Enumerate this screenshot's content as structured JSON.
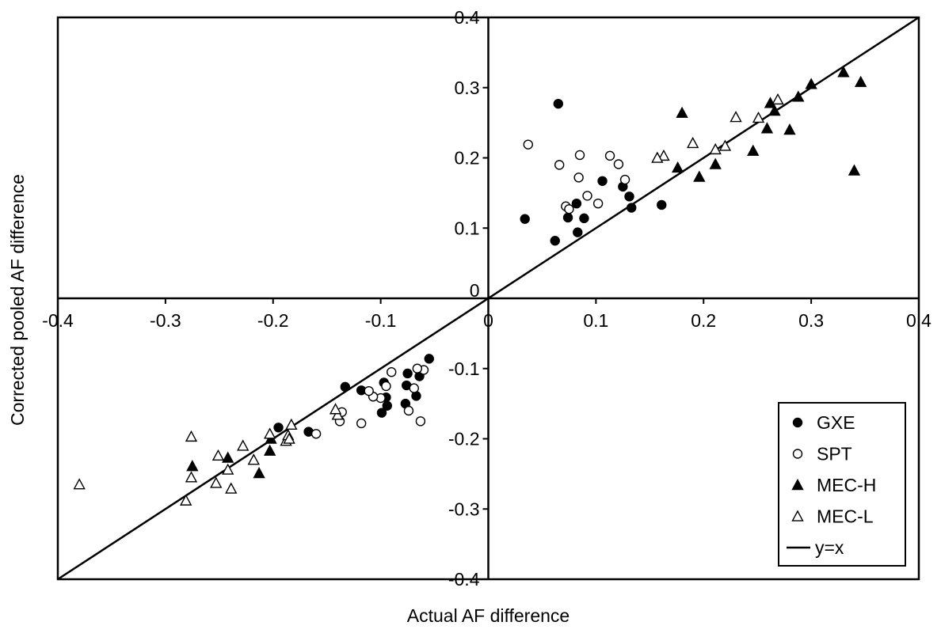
{
  "chart_data": {
    "type": "scatter",
    "title": "",
    "xlabel": "Actual AF difference",
    "ylabel": "Corrected pooled AF difference",
    "xlim": [
      -0.4,
      0.4
    ],
    "ylim": [
      -0.4,
      0.4
    ],
    "x_ticks": [
      -0.4,
      -0.3,
      -0.2,
      -0.1,
      0,
      0.1,
      0.2,
      0.3,
      0.4
    ],
    "y_ticks": [
      -0.4,
      -0.3,
      -0.2,
      -0.1,
      0,
      0.1,
      0.2,
      0.3,
      0.4
    ],
    "x_tick_labels": [
      "-0.4",
      "-0.3",
      "-0.2",
      "-0.1",
      "0",
      "0.1",
      "0.2",
      "0.3",
      "0.4"
    ],
    "y_tick_labels": [
      "-0.4",
      "-0.3",
      "-0.2",
      "-0.1",
      "0",
      "0.1",
      "0.2",
      "0.3",
      "0.4"
    ],
    "grid": false,
    "axes_through_origin": true,
    "legend_position": "bottom-right",
    "reference_line": {
      "name": "y=x",
      "slope": 1,
      "intercept": 0
    },
    "series": [
      {
        "name": "GXE",
        "marker": "circle",
        "filled": true,
        "points": [
          [
            0.065,
            0.277
          ],
          [
            0.034,
            0.113
          ],
          [
            0.074,
            0.115
          ],
          [
            0.062,
            0.082
          ],
          [
            0.082,
            0.135
          ],
          [
            0.083,
            0.094
          ],
          [
            0.089,
            0.114
          ],
          [
            0.106,
            0.167
          ],
          [
            0.125,
            0.159
          ],
          [
            0.131,
            0.145
          ],
          [
            0.133,
            0.129
          ],
          [
            0.161,
            0.133
          ],
          [
            -0.055,
            -0.086
          ],
          [
            -0.064,
            -0.111
          ],
          [
            -0.075,
            -0.107
          ],
          [
            -0.076,
            -0.124
          ],
          [
            -0.067,
            -0.139
          ],
          [
            -0.077,
            -0.15
          ],
          [
            -0.095,
            -0.141
          ],
          [
            -0.094,
            -0.153
          ],
          [
            -0.097,
            -0.12
          ],
          [
            -0.099,
            -0.163
          ],
          [
            -0.118,
            -0.131
          ],
          [
            -0.133,
            -0.126
          ],
          [
            -0.167,
            -0.19
          ],
          [
            -0.195,
            -0.184
          ]
        ]
      },
      {
        "name": "SPT",
        "marker": "circle",
        "filled": false,
        "points": [
          [
            0.037,
            0.219
          ],
          [
            0.066,
            0.19
          ],
          [
            0.072,
            0.131
          ],
          [
            0.075,
            0.127
          ],
          [
            0.084,
            0.172
          ],
          [
            0.085,
            0.204
          ],
          [
            0.092,
            0.146
          ],
          [
            0.102,
            0.135
          ],
          [
            0.113,
            0.203
          ],
          [
            0.121,
            0.191
          ],
          [
            0.127,
            0.169
          ],
          [
            -0.06,
            -0.102
          ],
          [
            -0.066,
            -0.1
          ],
          [
            -0.069,
            -0.128
          ],
          [
            -0.074,
            -0.16
          ],
          [
            -0.063,
            -0.175
          ],
          [
            -0.09,
            -0.105
          ],
          [
            -0.095,
            -0.125
          ],
          [
            -0.1,
            -0.142
          ],
          [
            -0.107,
            -0.14
          ],
          [
            -0.111,
            -0.132
          ],
          [
            -0.118,
            -0.178
          ],
          [
            -0.136,
            -0.162
          ],
          [
            -0.138,
            -0.175
          ],
          [
            -0.16,
            -0.193
          ]
        ]
      },
      {
        "name": "MEC-H",
        "marker": "triangle",
        "filled": true,
        "points": [
          [
            0.33,
            0.322
          ],
          [
            0.346,
            0.308
          ],
          [
            0.3,
            0.305
          ],
          [
            0.288,
            0.287
          ],
          [
            0.262,
            0.278
          ],
          [
            0.266,
            0.267
          ],
          [
            0.259,
            0.242
          ],
          [
            0.28,
            0.24
          ],
          [
            0.246,
            0.21
          ],
          [
            0.211,
            0.191
          ],
          [
            0.18,
            0.264
          ],
          [
            0.176,
            0.186
          ],
          [
            0.196,
            0.173
          ],
          [
            0.34,
            0.182
          ],
          [
            -0.275,
            -0.239
          ],
          [
            -0.242,
            -0.227
          ],
          [
            -0.213,
            -0.249
          ],
          [
            -0.203,
            -0.217
          ],
          [
            -0.202,
            -0.2
          ]
        ]
      },
      {
        "name": "MEC-L",
        "marker": "triangle",
        "filled": false,
        "points": [
          [
            0.269,
            0.283
          ],
          [
            0.23,
            0.258
          ],
          [
            0.251,
            0.257
          ],
          [
            0.19,
            0.221
          ],
          [
            0.22,
            0.217
          ],
          [
            0.211,
            0.212
          ],
          [
            0.163,
            0.203
          ],
          [
            0.157,
            0.2
          ],
          [
            -0.38,
            -0.265
          ],
          [
            -0.276,
            -0.197
          ],
          [
            -0.276,
            -0.255
          ],
          [
            -0.281,
            -0.288
          ],
          [
            -0.253,
            -0.263
          ],
          [
            -0.251,
            -0.224
          ],
          [
            -0.242,
            -0.244
          ],
          [
            -0.239,
            -0.271
          ],
          [
            -0.228,
            -0.21
          ],
          [
            -0.218,
            -0.23
          ],
          [
            -0.203,
            -0.193
          ],
          [
            -0.188,
            -0.203
          ],
          [
            -0.186,
            -0.195
          ],
          [
            -0.183,
            -0.18
          ],
          [
            -0.14,
            -0.166
          ],
          [
            -0.142,
            -0.158
          ],
          [
            -0.185,
            -0.2
          ]
        ]
      }
    ]
  }
}
